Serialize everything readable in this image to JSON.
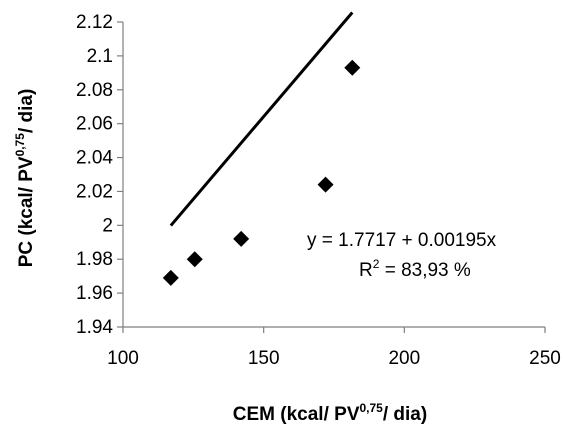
{
  "chart_data": {
    "type": "scatter",
    "xlabel": {
      "main": "CEM (kcal/ PV",
      "sup": "0,75",
      "tail": "/ dia)"
    },
    "ylabel": {
      "main": "PC (kcal/ PV",
      "sup": "0,75",
      "tail": "/ dia)"
    },
    "xlim": [
      100,
      250
    ],
    "ylim": [
      1.94,
      2.12
    ],
    "xticks": [
      "100",
      "150",
      "200",
      "250"
    ],
    "yticks": [
      "1.94",
      "1.96",
      "1.98",
      "2",
      "2.02",
      "2.04",
      "2.06",
      "2.08",
      "2.1",
      "2.12"
    ],
    "grid": false,
    "legend": "none",
    "marker": "diamond",
    "points": [
      {
        "x": 117,
        "y": 1.969
      },
      {
        "x": 125.5,
        "y": 1.98
      },
      {
        "x": 142,
        "y": 1.992
      },
      {
        "x": 172,
        "y": 2.024
      },
      {
        "x": 181.5,
        "y": 2.093
      }
    ],
    "trendline": {
      "intercept": 1.7717,
      "slope": 0.00195,
      "x_from": 117,
      "x_to": 181.5
    },
    "annotations": {
      "equation": "y = 1.7717 + 0.00195x",
      "r2_prefix": "R",
      "r2_sup": "2",
      "r2_value": " = 83,93 %"
    },
    "colors": {
      "marker": "#000000",
      "line": "#000000",
      "axis": "#7f7f7f"
    }
  }
}
